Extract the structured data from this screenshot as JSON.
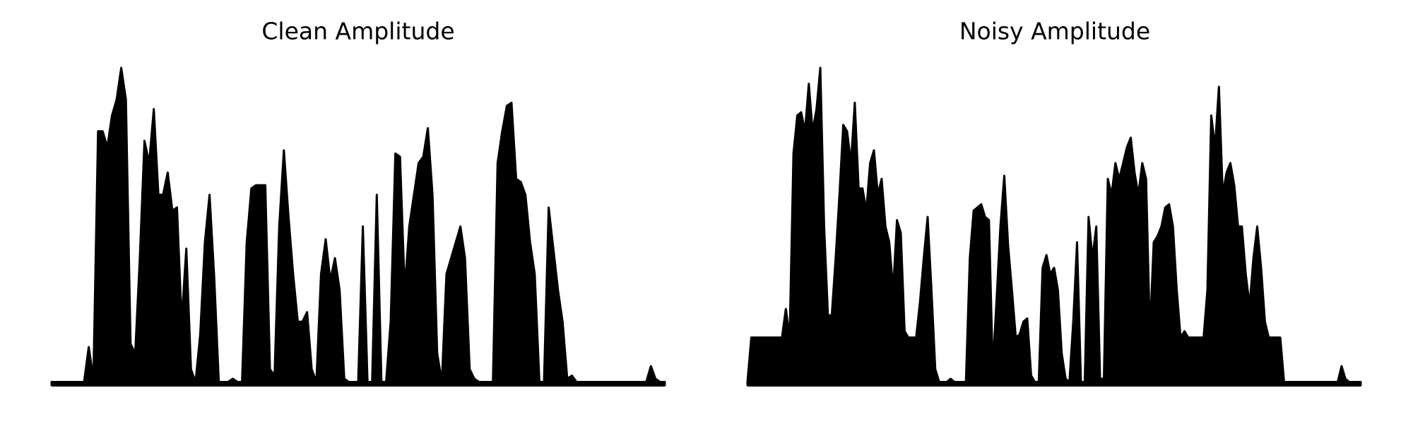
{
  "chart_data": [
    {
      "type": "area",
      "title": "Clean Amplitude",
      "color": "#000000",
      "ylim": [
        0,
        1
      ],
      "values": [
        0.01,
        0.01,
        0.01,
        0.01,
        0.01,
        0.01,
        0.01,
        0.01,
        0.12,
        0.02,
        0.8,
        0.8,
        0.75,
        0.85,
        0.9,
        1.0,
        0.9,
        0.13,
        0.1,
        0.4,
        0.77,
        0.7,
        0.87,
        0.6,
        0.6,
        0.67,
        0.55,
        0.56,
        0.2,
        0.43,
        0.05,
        0.01,
        0.16,
        0.45,
        0.6,
        0.34,
        0.01,
        0.01,
        0.01,
        0.02,
        0.01,
        0.01,
        0.45,
        0.62,
        0.63,
        0.63,
        0.63,
        0.05,
        0.03,
        0.5,
        0.74,
        0.53,
        0.35,
        0.2,
        0.2,
        0.23,
        0.05,
        0.01,
        0.35,
        0.46,
        0.33,
        0.4,
        0.3,
        0.02,
        0.01,
        0.01,
        0.01,
        0.5,
        0.01,
        0.01,
        0.6,
        0.01,
        0.01,
        0.2,
        0.73,
        0.72,
        0.3,
        0.5,
        0.6,
        0.7,
        0.72,
        0.81,
        0.6,
        0.1,
        0.01,
        0.35,
        0.4,
        0.45,
        0.5,
        0.4,
        0.05,
        0.02,
        0.01,
        0.01,
        0.01,
        0.01,
        0.7,
        0.8,
        0.88,
        0.89,
        0.65,
        0.64,
        0.6,
        0.45,
        0.35,
        0.01,
        0.01,
        0.56,
        0.43,
        0.3,
        0.2,
        0.02,
        0.03,
        0.01,
        0.01,
        0.01,
        0.01,
        0.01,
        0.01,
        0.01,
        0.01,
        0.01,
        0.01,
        0.01,
        0.01,
        0.01,
        0.01,
        0.01,
        0.01,
        0.06,
        0.02,
        0.01,
        0.01
      ]
    },
    {
      "type": "area",
      "title": "Noisy Amplitude",
      "color": "#000000",
      "ylim": [
        0,
        1
      ],
      "values": [
        0.01,
        0.15,
        0.15,
        0.15,
        0.15,
        0.15,
        0.15,
        0.15,
        0.15,
        0.15,
        0.24,
        0.15,
        0.73,
        0.85,
        0.86,
        0.8,
        0.95,
        0.8,
        0.87,
        1.0,
        0.5,
        0.22,
        0.22,
        0.4,
        0.6,
        0.82,
        0.8,
        0.7,
        0.89,
        0.62,
        0.62,
        0.55,
        0.7,
        0.74,
        0.6,
        0.65,
        0.5,
        0.45,
        0.3,
        0.52,
        0.48,
        0.17,
        0.15,
        0.15,
        0.15,
        0.26,
        0.4,
        0.53,
        0.3,
        0.05,
        0.01,
        0.01,
        0.01,
        0.02,
        0.01,
        0.01,
        0.01,
        0.01,
        0.4,
        0.55,
        0.56,
        0.57,
        0.53,
        0.52,
        0.05,
        0.27,
        0.5,
        0.66,
        0.44,
        0.3,
        0.15,
        0.16,
        0.2,
        0.21,
        0.03,
        0.01,
        0.01,
        0.37,
        0.41,
        0.35,
        0.37,
        0.3,
        0.1,
        0.02,
        0.01,
        0.2,
        0.45,
        0.01,
        0.01,
        0.53,
        0.4,
        0.5,
        0.02,
        0.02,
        0.65,
        0.6,
        0.7,
        0.65,
        0.7,
        0.75,
        0.78,
        0.67,
        0.6,
        0.7,
        0.65,
        0.16,
        0.45,
        0.47,
        0.5,
        0.56,
        0.57,
        0.5,
        0.3,
        0.15,
        0.17,
        0.15,
        0.15,
        0.15,
        0.15,
        0.15,
        0.3,
        0.85,
        0.75,
        0.94,
        0.6,
        0.67,
        0.7,
        0.63,
        0.5,
        0.5,
        0.35,
        0.25,
        0.4,
        0.5,
        0.37,
        0.2,
        0.15,
        0.15,
        0.15,
        0.15,
        0.01,
        0.01,
        0.01,
        0.01,
        0.01,
        0.01,
        0.01,
        0.01,
        0.01,
        0.01,
        0.01,
        0.01,
        0.01,
        0.01,
        0.01,
        0.06,
        0.02,
        0.01,
        0.01,
        0.01,
        0.01
      ]
    }
  ]
}
